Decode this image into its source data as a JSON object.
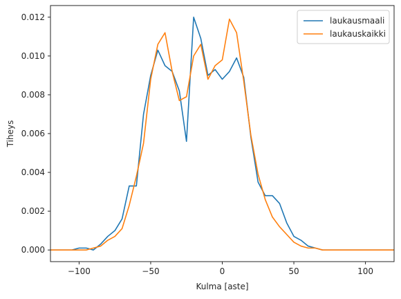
{
  "chart_data": {
    "type": "line",
    "xlabel": "Kulma [aste]",
    "ylabel": "Tiheys",
    "xlim": [
      -120,
      120
    ],
    "ylim": [
      -0.0006,
      0.0126
    ],
    "xticks": [
      -100,
      -50,
      0,
      50,
      100
    ],
    "xtick_labels": [
      "−100",
      "−50",
      "0",
      "50",
      "100"
    ],
    "yticks": [
      0.0,
      0.002,
      0.004,
      0.006,
      0.008,
      0.01,
      0.012
    ],
    "ytick_labels": [
      "0.000",
      "0.002",
      "0.004",
      "0.006",
      "0.008",
      "0.010",
      "0.012"
    ],
    "grid": false,
    "legend_position": "top-right",
    "series": [
      {
        "name": "laukausmaali",
        "color": "#1f77b4",
        "x": [
          -120,
          -115,
          -110,
          -105,
          -100,
          -95,
          -90,
          -85,
          -80,
          -75,
          -70,
          -65,
          -60,
          -55,
          -50,
          -45,
          -40,
          -35,
          -30,
          -25,
          -20,
          -15,
          -10,
          -5,
          0,
          5,
          10,
          15,
          20,
          25,
          30,
          35,
          40,
          45,
          50,
          55,
          60,
          65,
          70,
          75,
          80,
          85,
          90,
          95,
          100,
          105,
          110,
          115,
          120
        ],
        "values": [
          0.0,
          0.0,
          0.0,
          0.0,
          0.0001,
          0.0001,
          0.0,
          0.0003,
          0.0007,
          0.001,
          0.0016,
          0.0033,
          0.0033,
          0.007,
          0.009,
          0.0103,
          0.0095,
          0.0092,
          0.0082,
          0.0056,
          0.012,
          0.0109,
          0.009,
          0.0093,
          0.0088,
          0.0092,
          0.0099,
          0.0089,
          0.0058,
          0.0035,
          0.0028,
          0.0028,
          0.0024,
          0.0014,
          0.0007,
          0.0005,
          0.0002,
          0.0001,
          0.0,
          0.0,
          0.0,
          0.0,
          0.0,
          0.0,
          0.0,
          0.0,
          0.0,
          0.0,
          0.0
        ]
      },
      {
        "name": "laukauskaikki",
        "color": "#ff7f0e",
        "x": [
          -120,
          -115,
          -110,
          -105,
          -100,
          -95,
          -90,
          -85,
          -80,
          -75,
          -70,
          -65,
          -60,
          -55,
          -50,
          -45,
          -40,
          -35,
          -30,
          -25,
          -20,
          -15,
          -10,
          -5,
          0,
          5,
          10,
          15,
          20,
          25,
          30,
          35,
          40,
          45,
          50,
          55,
          60,
          65,
          70,
          75,
          80,
          85,
          90,
          95,
          100,
          105,
          110,
          115,
          120
        ],
        "values": [
          0.0,
          0.0,
          0.0,
          0.0,
          0.0,
          0.0,
          0.0001,
          0.0002,
          0.0005,
          0.0007,
          0.0011,
          0.0023,
          0.0038,
          0.0055,
          0.0088,
          0.0106,
          0.0112,
          0.0092,
          0.0077,
          0.0079,
          0.01,
          0.0106,
          0.0088,
          0.0095,
          0.0098,
          0.0119,
          0.0112,
          0.0087,
          0.0059,
          0.0039,
          0.0026,
          0.0017,
          0.0012,
          0.0008,
          0.0004,
          0.0002,
          0.0001,
          0.0001,
          0.0,
          0.0,
          0.0,
          0.0,
          0.0,
          0.0,
          0.0,
          0.0,
          0.0,
          0.0,
          0.0
        ]
      }
    ]
  }
}
